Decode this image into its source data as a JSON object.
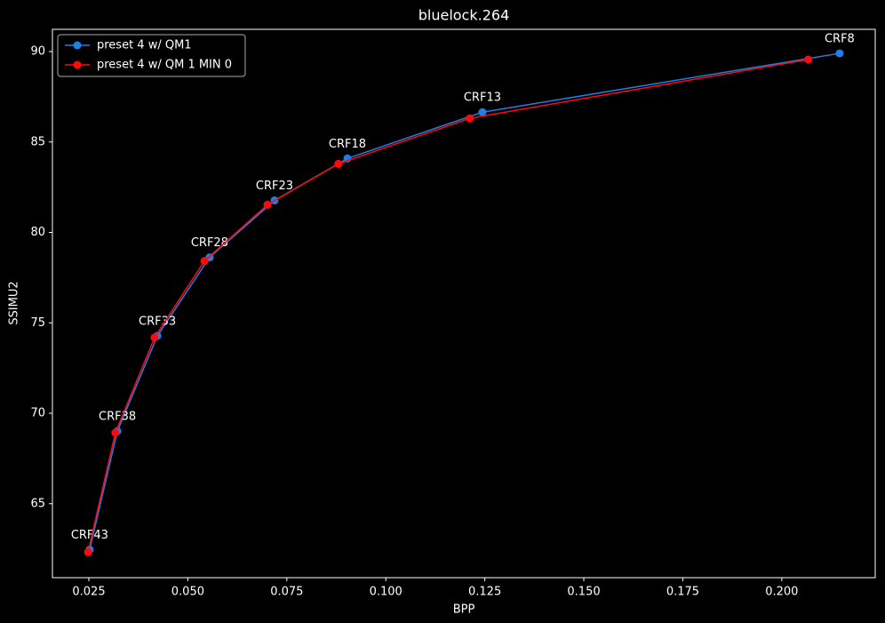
{
  "chart_data": {
    "type": "line",
    "title": "bluelock.264",
    "x_label": "BPP",
    "y_label": "SSIMU2",
    "xlim": [
      0.0158,
      0.2236
    ],
    "ylim": [
      60.91,
      91.23
    ],
    "xticks": [
      0.025,
      {
        "value": 0.05,
        "label": "0.050"
      },
      0.075,
      {
        "value": 0.1,
        "label": "0.100"
      },
      0.125,
      {
        "value": 0.15,
        "label": "0.150"
      },
      0.175,
      {
        "value": 0.2,
        "label": "0.200"
      }
    ],
    "yticks": [
      65,
      70,
      75,
      80,
      85,
      90
    ],
    "legend": "upper left",
    "series": [
      {
        "name": "preset 4 w/ QM1",
        "color": "#1f7fe6",
        "x": [
          0.2146,
          0.1244,
          0.0903,
          0.0719,
          0.0555,
          0.0423,
          0.0322,
          0.0252
        ],
        "values": [
          89.9,
          86.65,
          84.09,
          81.77,
          78.62,
          74.28,
          69.01,
          62.46
        ],
        "labels": [
          "CRF8",
          "CRF13",
          "CRF18",
          "CRF23",
          "CRF28",
          "CRF33",
          "CRF38",
          "CRF43"
        ]
      },
      {
        "name": "preset 4 w/ QM 1 MIN 0",
        "color": "#ff0a0a",
        "x": [
          0.2067,
          0.1212,
          0.088,
          0.0701,
          0.0542,
          0.0416,
          0.0317,
          0.0248
        ],
        "values": [
          89.56,
          86.31,
          83.79,
          81.53,
          78.42,
          74.19,
          68.92,
          62.32
        ]
      }
    ]
  }
}
